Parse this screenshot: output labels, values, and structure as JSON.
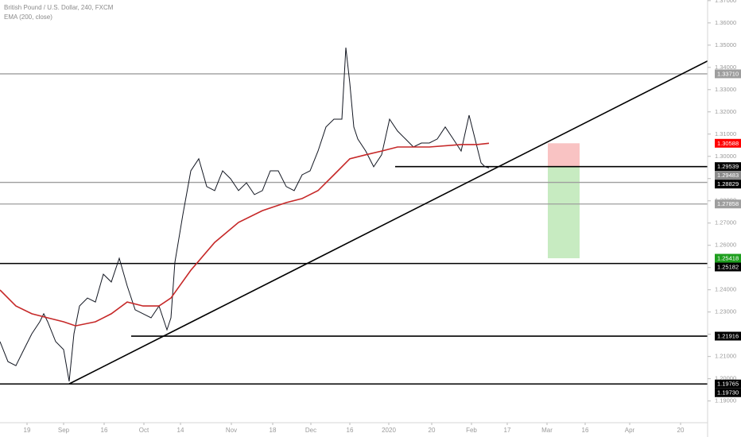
{
  "chart_data": {
    "type": "price",
    "title": "British Pound / U.S. Dollar, 240, FXCM",
    "xlim": [
      0,
      89
    ],
    "xticks": [
      {
        "value": 3.4,
        "label": "19"
      },
      {
        "value": 8.0,
        "label": "Sep"
      },
      {
        "value": 13.1,
        "label": "16"
      },
      {
        "value": 18.1,
        "label": "Oct"
      },
      {
        "value": 22.7,
        "label": "14"
      },
      {
        "value": 29.1,
        "label": "Nov"
      },
      {
        "value": 34.3,
        "label": "18"
      },
      {
        "value": 39.1,
        "label": "Dec"
      },
      {
        "value": 44.0,
        "label": "16"
      },
      {
        "value": 48.9,
        "label": "2020"
      },
      {
        "value": 54.3,
        "label": "20"
      },
      {
        "value": 59.3,
        "label": "Feb"
      },
      {
        "value": 63.8,
        "label": "17"
      },
      {
        "value": 68.8,
        "label": "Mar"
      },
      {
        "value": 73.6,
        "label": "16"
      },
      {
        "value": 79.2,
        "label": "Apr"
      },
      {
        "value": 85.6,
        "label": "20"
      }
    ],
    "ylim": [
      1.1738,
      1.3703
    ],
    "yticks": [
      {
        "value": 1.19,
        "label": "1.19000"
      },
      {
        "value": 1.2,
        "label": "1.20000"
      },
      {
        "value": 1.21,
        "label": "1.21000"
      },
      {
        "value": 1.22,
        "label": "1.22000"
      },
      {
        "value": 1.23,
        "label": "1.23000"
      },
      {
        "value": 1.24,
        "label": "1.24000"
      },
      {
        "value": 1.25,
        "label": "1.25000"
      },
      {
        "value": 1.26,
        "label": "1.26000"
      },
      {
        "value": 1.27,
        "label": "1.27000"
      },
      {
        "value": 1.28,
        "label": "1.28000"
      },
      {
        "value": 1.29,
        "label": "1.29000"
      },
      {
        "value": 1.3,
        "label": "1.30000"
      },
      {
        "value": 1.31,
        "label": "1.31000"
      },
      {
        "value": 1.32,
        "label": "1.32000"
      },
      {
        "value": 1.33,
        "label": "1.33000"
      },
      {
        "value": 1.34,
        "label": "1.34000"
      },
      {
        "value": 1.35,
        "label": "1.35000"
      },
      {
        "value": 1.36,
        "label": "1.36000"
      },
      {
        "value": 1.37,
        "label": "1.37000"
      }
    ],
    "series": [
      {
        "color": "#131722",
        "x": [
          0,
          1,
          2,
          3,
          4,
          5,
          5.5,
          6,
          7,
          8,
          8.7,
          9.3,
          10,
          11,
          12,
          13,
          14,
          15,
          16,
          17,
          18,
          19,
          20,
          21,
          21.5,
          22,
          22.5,
          23,
          24,
          25,
          26,
          27,
          28,
          29,
          30,
          31,
          32,
          33,
          34,
          35,
          36,
          37,
          38,
          39,
          40,
          41,
          42,
          43,
          43.5,
          44,
          44.5,
          45,
          46,
          47,
          48,
          49,
          50,
          51,
          52,
          53,
          54,
          55,
          56,
          57,
          58,
          59,
          60,
          60.5,
          61,
          61.5
        ],
        "values": [
          1.2167,
          1.2077,
          1.2059,
          1.2131,
          1.2202,
          1.2256,
          1.2292,
          1.2256,
          1.2167,
          1.2131,
          1.1988,
          1.2202,
          1.2327,
          1.2363,
          1.2345,
          1.247,
          1.2435,
          1.2542,
          1.2417,
          1.231,
          1.2292,
          1.2274,
          1.2327,
          1.222,
          1.2274,
          1.2524,
          1.2631,
          1.2738,
          1.2935,
          1.2989,
          1.2864,
          1.2846,
          1.2935,
          1.2899,
          1.2846,
          1.2881,
          1.2828,
          1.2846,
          1.2935,
          1.2935,
          1.2864,
          1.2846,
          1.2917,
          1.2935,
          1.3024,
          1.3132,
          1.3167,
          1.3167,
          1.3489,
          1.3328,
          1.3132,
          1.3078,
          1.3024,
          1.2953,
          1.3007,
          1.3167,
          1.3114,
          1.3078,
          1.3042,
          1.306,
          1.306,
          1.3078,
          1.3132,
          1.3078,
          1.3024,
          1.3185,
          1.3042,
          1.2971,
          1.2953,
          1.2948
        ]
      },
      {
        "name": "EMA (200, close)",
        "color": "#c62828",
        "x": [
          0,
          2,
          4,
          6,
          8,
          9.5,
          12,
          14,
          16,
          18,
          20,
          21.5,
          24,
          27,
          30,
          33,
          36,
          38,
          40,
          42,
          44,
          46,
          48,
          50,
          54,
          58,
          60,
          61.5
        ],
        "values": [
          1.2399,
          1.2327,
          1.2292,
          1.2274,
          1.2256,
          1.2238,
          1.2256,
          1.2292,
          1.2345,
          1.2327,
          1.2327,
          1.2363,
          1.2488,
          1.2613,
          1.2703,
          1.2756,
          1.2792,
          1.281,
          1.2846,
          1.2917,
          1.2989,
          1.3007,
          1.3024,
          1.3042,
          1.3042,
          1.3053,
          1.3053,
          1.3059
        ]
      }
    ],
    "trendline": {
      "x": [
        8.7,
        89.0
      ],
      "y": [
        1.1977,
        1.3429
      ],
      "color": "#000000"
    },
    "levels": [
      {
        "value": 1.3371,
        "label": "1.33710",
        "color": "#9e9e9e",
        "line": true,
        "x_start": 0
      },
      {
        "value": 1.30588,
        "label": "1.30588",
        "color": "#ff0000",
        "line": false
      },
      {
        "value": 1.29539,
        "label": "1.29539",
        "color": "#000000",
        "line": true,
        "x_start": 49.7
      },
      {
        "value": 1.29483,
        "label": "1.29483",
        "color": "#8a8a8a",
        "line": false
      },
      {
        "value": 1.28829,
        "label": "1.28829",
        "color": "#000000",
        "line": true,
        "x_start": 0,
        "line_color": "#9e9e9e"
      },
      {
        "value": 1.27858,
        "label": "1.27858",
        "color": "#9e9e9e",
        "line": true,
        "x_start": 0
      },
      {
        "value": 1.25418,
        "label": "1.25418",
        "color": "#1e9e1e",
        "line": false
      },
      {
        "value": 1.25182,
        "label": "1.25182",
        "color": "#000000",
        "line": true,
        "x_start": 0
      },
      {
        "value": 1.21916,
        "label": "1.21916",
        "color": "#000000",
        "line": true,
        "x_start": 16.5
      },
      {
        "value": 1.19765,
        "label": "1.19765",
        "color": "#000000",
        "line": true,
        "x_start": 0
      },
      {
        "value": 1.1973,
        "label": "1.19730",
        "color": "#000000",
        "line": false
      }
    ],
    "position": {
      "x": [
        68.9,
        72.9
      ],
      "entry": 1.29539,
      "stop": 1.30588,
      "target": 1.25418,
      "stop_color": "#f8b4b4",
      "target_color": "#b9e6b1"
    }
  }
}
